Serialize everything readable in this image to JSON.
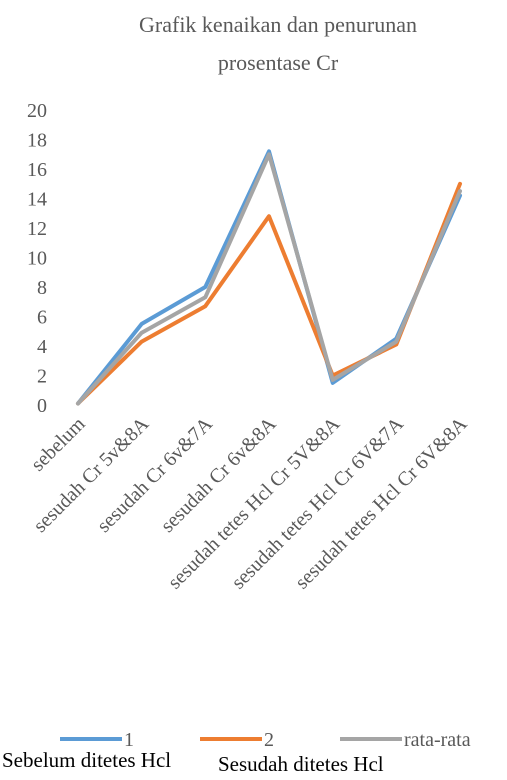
{
  "chart_data": {
    "type": "line",
    "title": [
      "Grafik kenaikan dan penurunan",
      "prosentase Cr"
    ],
    "categories": [
      "sebelum",
      "sesudah Cr 5v&8A",
      "sesudah Cr 6v&7A",
      "sesudah Cr 6v&8A",
      "sesudah tetes Hcl Cr 5V&8A",
      "sesudah tetes Hcl Cr 6V&7A",
      "sesudah tetes Hcl Cr 6V&8A"
    ],
    "series": [
      {
        "name": "1",
        "color": "#5b9bd5",
        "values": [
          0.1,
          5.5,
          8.0,
          17.2,
          1.5,
          4.5,
          14.2
        ]
      },
      {
        "name": "2",
        "color": "#ed7d31",
        "values": [
          0.1,
          4.3,
          6.7,
          12.8,
          2.0,
          4.1,
          15.0
        ]
      },
      {
        "name": "rata-rata",
        "color": "#a5a5a5",
        "values": [
          0.1,
          4.9,
          7.3,
          17.0,
          1.7,
          4.3,
          14.5
        ]
      }
    ],
    "yticks": [
      "0",
      "2",
      "4",
      "6",
      "8",
      "10",
      "12",
      "14",
      "16",
      "18",
      "20"
    ],
    "ylim": [
      0,
      20
    ],
    "grid": false,
    "legend": "bottom",
    "xlabel": "",
    "ylabel": ""
  },
  "footer": {
    "left": "Sebelum ditetes Hcl",
    "right": "Sesudah ditetes Hcl"
  }
}
